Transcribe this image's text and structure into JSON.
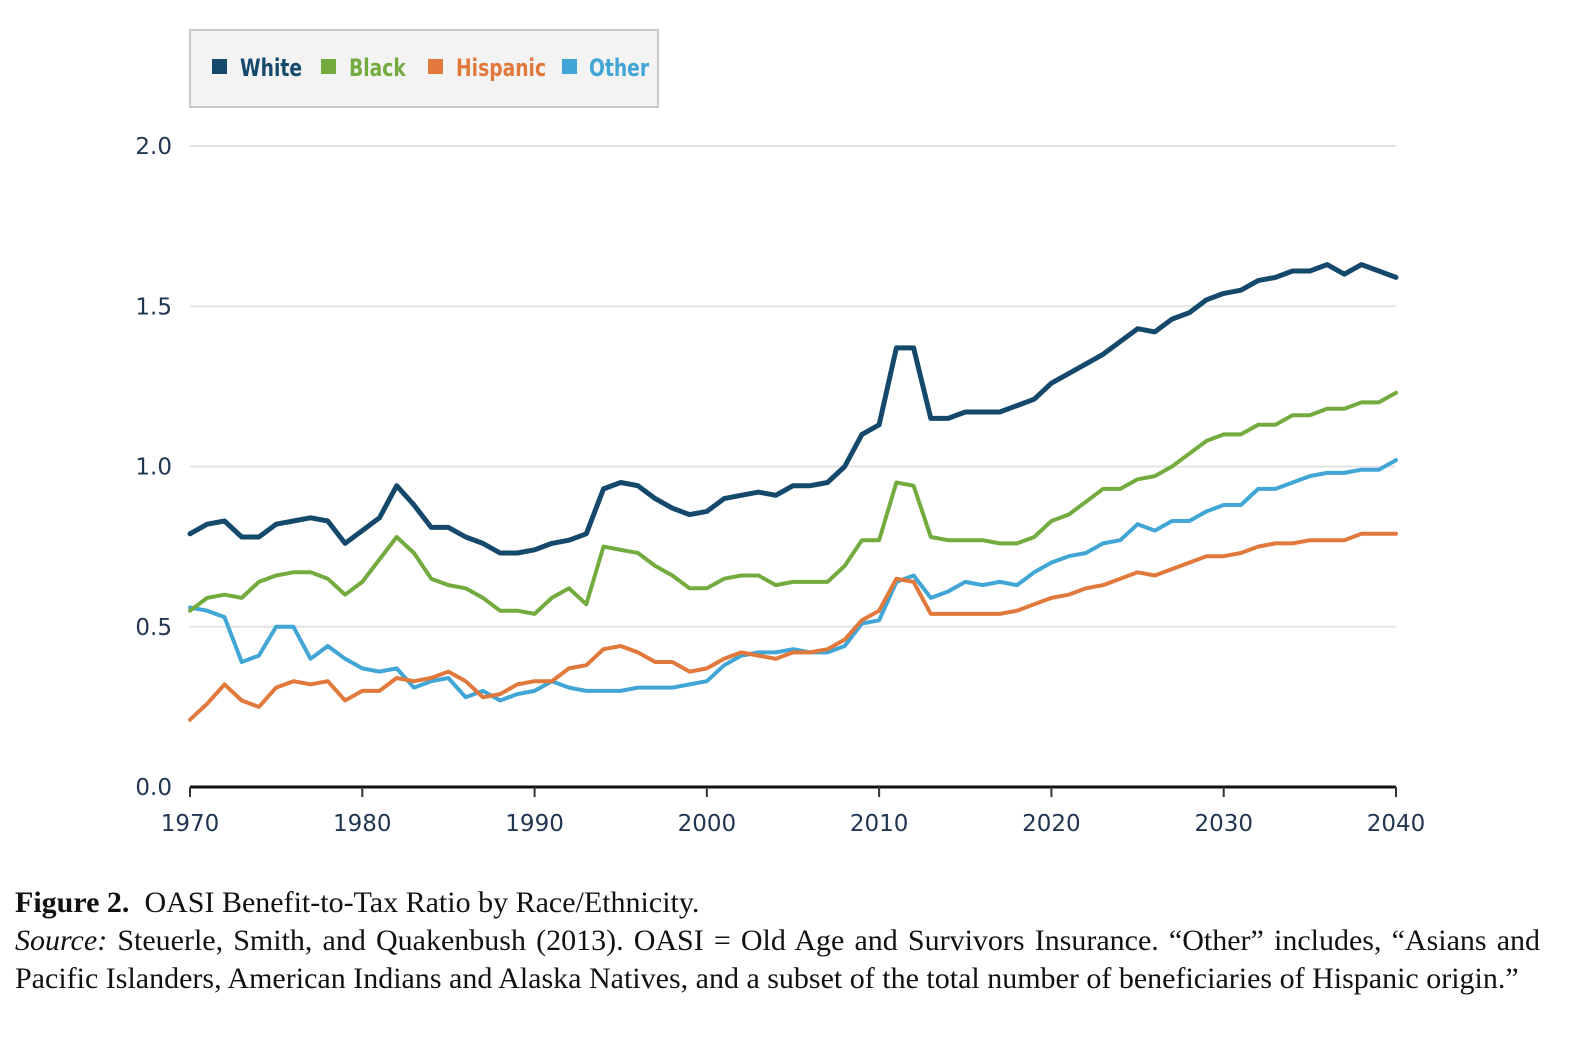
{
  "chart_data": {
    "type": "line",
    "title": "",
    "xlabel": "",
    "ylabel": "",
    "xlim": [
      1970,
      2040
    ],
    "ylim": [
      0.0,
      2.0
    ],
    "x_ticks": [
      "1970",
      "1980",
      "1990",
      "2000",
      "2010",
      "2020",
      "2030",
      "2040"
    ],
    "y_ticks": [
      "0.0",
      "0.5",
      "1.0",
      "1.5",
      "2.0"
    ],
    "grid": "horizontal",
    "legend_position": "top-left",
    "x": [
      1970,
      1971,
      1972,
      1973,
      1974,
      1975,
      1976,
      1977,
      1978,
      1979,
      1980,
      1981,
      1982,
      1983,
      1984,
      1985,
      1986,
      1987,
      1988,
      1989,
      1990,
      1991,
      1992,
      1993,
      1994,
      1995,
      1996,
      1997,
      1998,
      1999,
      2000,
      2001,
      2002,
      2003,
      2004,
      2005,
      2006,
      2007,
      2008,
      2009,
      2010,
      2011,
      2012,
      2013,
      2014,
      2015,
      2016,
      2017,
      2018,
      2019,
      2020,
      2021,
      2022,
      2023,
      2024,
      2025,
      2026,
      2027,
      2028,
      2029,
      2030,
      2031,
      2032,
      2033,
      2034,
      2035,
      2036,
      2037,
      2038,
      2039,
      2040
    ],
    "series": [
      {
        "name": "White",
        "color": "#15496c",
        "values": [
          0.79,
          0.82,
          0.83,
          0.78,
          0.78,
          0.82,
          0.83,
          0.84,
          0.83,
          0.76,
          0.8,
          0.84,
          0.94,
          0.88,
          0.81,
          0.81,
          0.78,
          0.76,
          0.73,
          0.73,
          0.74,
          0.76,
          0.77,
          0.79,
          0.93,
          0.95,
          0.94,
          0.9,
          0.87,
          0.85,
          0.86,
          0.9,
          0.91,
          0.92,
          0.91,
          0.94,
          0.94,
          0.95,
          1.0,
          1.1,
          1.13,
          1.37,
          1.37,
          1.15,
          1.15,
          1.17,
          1.17,
          1.17,
          1.19,
          1.21,
          1.26,
          1.29,
          1.32,
          1.35,
          1.39,
          1.43,
          1.42,
          1.46,
          1.48,
          1.52,
          1.54,
          1.55,
          1.58,
          1.59,
          1.61,
          1.61,
          1.63,
          1.6,
          1.63,
          1.61,
          1.59
        ]
      },
      {
        "name": "Black",
        "color": "#74ab3f",
        "values": [
          0.55,
          0.59,
          0.6,
          0.59,
          0.64,
          0.66,
          0.67,
          0.67,
          0.65,
          0.6,
          0.64,
          0.71,
          0.78,
          0.73,
          0.65,
          0.63,
          0.62,
          0.59,
          0.55,
          0.55,
          0.54,
          0.59,
          0.62,
          0.57,
          0.75,
          0.74,
          0.73,
          0.69,
          0.66,
          0.62,
          0.62,
          0.65,
          0.66,
          0.66,
          0.63,
          0.64,
          0.64,
          0.64,
          0.69,
          0.77,
          0.77,
          0.95,
          0.94,
          0.78,
          0.77,
          0.77,
          0.77,
          0.76,
          0.76,
          0.78,
          0.83,
          0.85,
          0.89,
          0.93,
          0.93,
          0.96,
          0.97,
          1.0,
          1.04,
          1.08,
          1.1,
          1.1,
          1.13,
          1.13,
          1.16,
          1.16,
          1.18,
          1.18,
          1.2,
          1.2,
          1.23
        ]
      },
      {
        "name": "Hispanic",
        "color": "#e2793c",
        "values": [
          0.21,
          0.26,
          0.32,
          0.27,
          0.25,
          0.31,
          0.33,
          0.32,
          0.33,
          0.27,
          0.3,
          0.3,
          0.34,
          0.33,
          0.34,
          0.36,
          0.33,
          0.28,
          0.29,
          0.32,
          0.33,
          0.33,
          0.37,
          0.38,
          0.43,
          0.44,
          0.42,
          0.39,
          0.39,
          0.36,
          0.37,
          0.4,
          0.42,
          0.41,
          0.4,
          0.42,
          0.42,
          0.43,
          0.46,
          0.52,
          0.55,
          0.65,
          0.64,
          0.54,
          0.54,
          0.54,
          0.54,
          0.54,
          0.55,
          0.57,
          0.59,
          0.6,
          0.62,
          0.63,
          0.65,
          0.67,
          0.66,
          0.68,
          0.7,
          0.72,
          0.72,
          0.73,
          0.75,
          0.76,
          0.76,
          0.77,
          0.77,
          0.77,
          0.79,
          0.79,
          0.79
        ]
      },
      {
        "name": "Other",
        "color": "#41a6d6",
        "values": [
          0.56,
          0.55,
          0.53,
          0.39,
          0.41,
          0.5,
          0.5,
          0.4,
          0.44,
          0.4,
          0.37,
          0.36,
          0.37,
          0.31,
          0.33,
          0.34,
          0.28,
          0.3,
          0.27,
          0.29,
          0.3,
          0.33,
          0.31,
          0.3,
          0.3,
          0.3,
          0.31,
          0.31,
          0.31,
          0.32,
          0.33,
          0.38,
          0.41,
          0.42,
          0.42,
          0.43,
          0.42,
          0.42,
          0.44,
          0.51,
          0.52,
          0.64,
          0.66,
          0.59,
          0.61,
          0.64,
          0.63,
          0.64,
          0.63,
          0.67,
          0.7,
          0.72,
          0.73,
          0.76,
          0.77,
          0.82,
          0.8,
          0.83,
          0.83,
          0.86,
          0.88,
          0.88,
          0.93,
          0.93,
          0.95,
          0.97,
          0.98,
          0.98,
          0.99,
          0.99,
          1.02
        ]
      }
    ]
  },
  "caption": {
    "figure_label": "Figure 2.",
    "figure_title": "OASI Benefit-to-Tax Ratio by Race/Ethnicity.",
    "source_label": "Source:",
    "source_text": "Steuerle, Smith, and Quakenbush (2013). OASI = Old Age and Survivors Insurance. “Other” includes, “Asians and Pacific Islanders, American Indians and Alaska Natives, and a subset of the total number of beneficiaries of Hispanic origin.”"
  }
}
